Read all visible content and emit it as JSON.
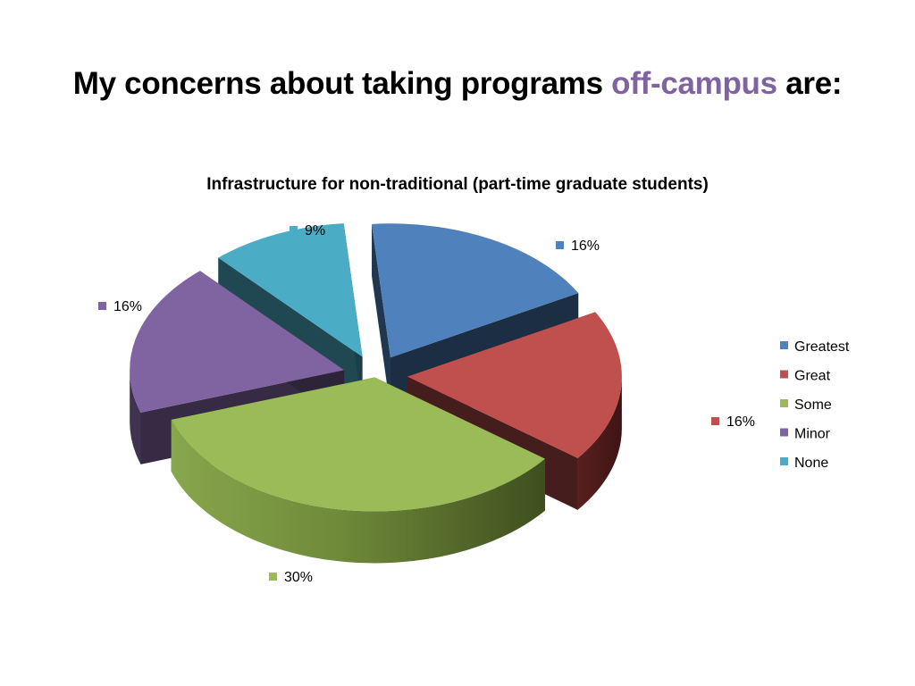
{
  "slide": {
    "title_prefix": "My concerns about taking programs",
    "title_accent": "off-campus",
    "title_suffix": "are:",
    "accent_color": "#8064A2"
  },
  "chart_data": {
    "type": "pie",
    "title": "Infrastructure for non-traditional (part-time graduate students)",
    "categories": [
      "Greatest",
      "Great",
      "Some",
      "Minor",
      "None"
    ],
    "values": [
      16,
      16,
      30,
      16,
      9
    ],
    "data_labels": [
      "16%",
      "16%",
      "30%",
      "16%",
      "9%"
    ],
    "colors": [
      "#4F81BD",
      "#C0504D",
      "#9BBB59",
      "#8064A2",
      "#4BACC6"
    ],
    "legend_position": "right",
    "exploded": true,
    "three_d": true
  }
}
